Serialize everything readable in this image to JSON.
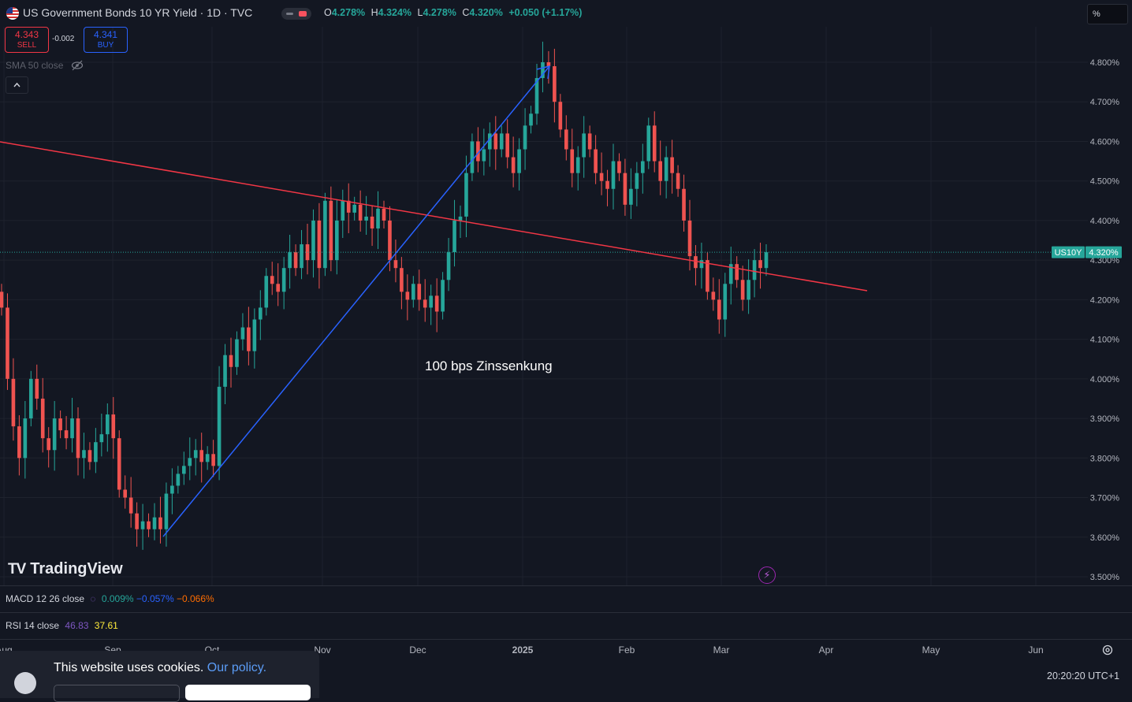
{
  "header": {
    "title": "US Government Bonds 10 YR Yield · 1D · TVC",
    "ohlc": {
      "o_label": "O",
      "o": "4.278%",
      "h_label": "H",
      "h": "4.324%",
      "l_label": "L",
      "l": "4.278%",
      "c_label": "C",
      "c": "4.320%",
      "change": "+0.050 (+1.17%)"
    },
    "scale_mode": "%"
  },
  "trade": {
    "sell_value": "4.343",
    "sell_label": "SELL",
    "spread": "-0.002",
    "buy_value": "4.341",
    "buy_label": "BUY"
  },
  "indicators": {
    "sma_label": "SMA 50 close",
    "macd_label": "MACD 12 26 close",
    "macd_values": [
      "0.009%",
      "−0.057%",
      "−0.066%"
    ],
    "rsi_label": "RSI 14 close",
    "rsi_values": [
      "46.83",
      "37.61"
    ]
  },
  "branding": {
    "logo_text": "TradingView"
  },
  "annotation": "100 bps Zinssenkung",
  "cookie": {
    "text": "This website uses cookies.",
    "link": "Our policy."
  },
  "clock": "20:20:20 UTC+1",
  "colors": {
    "background": "#131722",
    "up": "#26a69a",
    "down": "#ef5350",
    "trendline": "#f23645",
    "arrow": "#2962ff",
    "last_price": "#26a69a"
  },
  "chart_data": {
    "type": "candlestick",
    "symbol": "US10Y",
    "last_price": 4.32,
    "last_price_label": "4.320%",
    "y_ticks": [
      "4.800%",
      "4.700%",
      "4.600%",
      "4.500%",
      "4.400%",
      "4.300%",
      "4.200%",
      "4.100%",
      "4.000%",
      "3.900%",
      "3.800%",
      "3.700%",
      "3.600%",
      "3.500%"
    ],
    "ylim": [
      3.48,
      4.9
    ],
    "x_ticks": [
      "Aug",
      "Sep",
      "Oct",
      "Nov",
      "Dec",
      "2025",
      "Feb",
      "Mar",
      "Apr",
      "May",
      "Jun"
    ],
    "closes": [
      4.18,
      4.0,
      3.88,
      3.8,
      3.9,
      4.0,
      3.95,
      3.85,
      3.82,
      3.9,
      3.87,
      3.85,
      3.9,
      3.8,
      3.82,
      3.79,
      3.84,
      3.86,
      3.91,
      3.85,
      3.72,
      3.7,
      3.66,
      3.62,
      3.64,
      3.62,
      3.65,
      3.62,
      3.71,
      3.73,
      3.76,
      3.78,
      3.8,
      3.82,
      3.79,
      3.81,
      3.78,
      3.98,
      4.06,
      4.03,
      4.1,
      4.13,
      4.07,
      4.15,
      4.18,
      4.26,
      4.24,
      4.22,
      4.28,
      4.32,
      4.28,
      4.34,
      4.3,
      4.4,
      4.28,
      4.45,
      4.3,
      4.4,
      4.45,
      4.42,
      4.44,
      4.4,
      4.41,
      4.38,
      4.43,
      4.4,
      4.3,
      4.28,
      4.22,
      4.2,
      4.24,
      4.2,
      4.18,
      4.21,
      4.17,
      4.25,
      4.32,
      4.4,
      4.41,
      4.52,
      4.6,
      4.55,
      4.58,
      4.62,
      4.58,
      4.62,
      4.56,
      4.52,
      4.58,
      4.64,
      4.67,
      4.76,
      4.8,
      4.79,
      4.7,
      4.63,
      4.58,
      4.52,
      4.56,
      4.62,
      4.58,
      4.52,
      4.5,
      4.48,
      4.55,
      4.52,
      4.44,
      4.48,
      4.52,
      4.55,
      4.64,
      4.55,
      4.5,
      4.56,
      4.52,
      4.48,
      4.4,
      4.31,
      4.28,
      4.3,
      4.22,
      4.2,
      4.15,
      4.24,
      4.29,
      4.25,
      4.2,
      4.25,
      4.3,
      4.28,
      4.32
    ]
  }
}
